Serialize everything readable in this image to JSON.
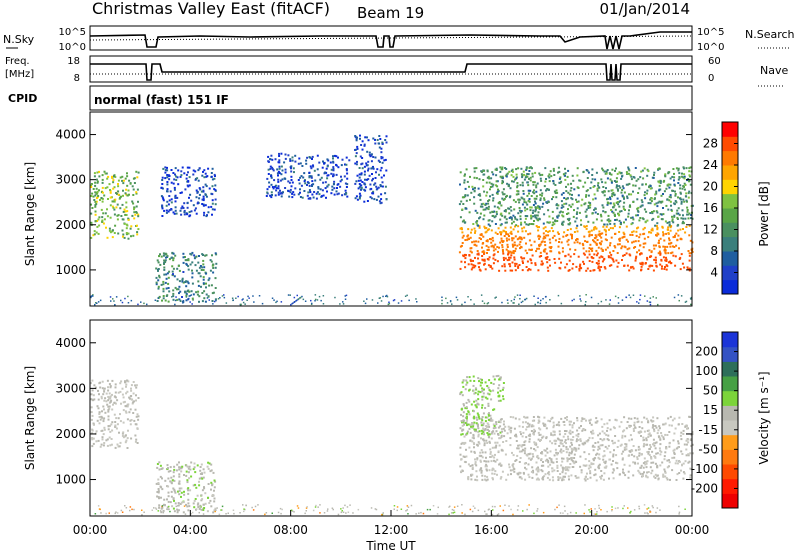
{
  "header": {
    "station": "Christmas Valley East (fitACF)",
    "beam": "Beam 19",
    "date": "01/Jan/2014"
  },
  "noise_panel": {
    "left_label": "N.Sky",
    "left_ticks": [
      "10^5",
      "10^0"
    ],
    "right_ticks": [
      "10^5",
      "10^0"
    ],
    "right_label": "N.Search"
  },
  "freq_panel": {
    "left_label_1": "Freq.",
    "left_label_2": "[MHz]",
    "left_ticks": [
      "18",
      "8"
    ],
    "right_ticks": [
      "60",
      "0"
    ],
    "right_label": "Nave"
  },
  "cpid": {
    "label": "CPID",
    "mode": "normal (fast) 151 IF"
  },
  "colors": {
    "power": [
      "#0a2bd9",
      "#2040c8",
      "#1f5ea0",
      "#3a7f7c",
      "#4a9060",
      "#59a547",
      "#7fc241",
      "#ffd400",
      "#ffa500",
      "#ff7a00",
      "#ff4b00",
      "#ff0000"
    ],
    "velocity": [
      "#1b34d8",
      "#3452c4",
      "#2d6f5a",
      "#46a044",
      "#7cd43a",
      "#b8b8b0",
      "#c8c8c0",
      "#ff9c1a",
      "#ff7a10",
      "#ff4a00",
      "#ff1a00",
      "#ee0000"
    ]
  },
  "chart_data": [
    {
      "type": "heatmap",
      "panel": "power",
      "ylabel": "Slant Range [km]",
      "yticks": [
        "1000",
        "2000",
        "3000",
        "4000"
      ],
      "ylim": [
        200,
        4500
      ],
      "xlim_hours": [
        0,
        24
      ],
      "colorbar": {
        "label": "Power [dB]",
        "ticks": [
          "4",
          "8",
          "12",
          "16",
          "20",
          "24",
          "28"
        ],
        "range": [
          0,
          32
        ]
      },
      "features": [
        {
          "t": [
            0.0,
            1.9
          ],
          "range_km": [
            1700,
            3200
          ],
          "value": 16
        },
        {
          "t": [
            2.8,
            5.0
          ],
          "range_km": [
            2200,
            3300
          ],
          "value": 4
        },
        {
          "t": [
            2.6,
            5.0
          ],
          "range_km": [
            300,
            1400
          ],
          "value": 10
        },
        {
          "t": [
            7.0,
            10.3
          ],
          "range_km": [
            2600,
            3600
          ],
          "value": 4
        },
        {
          "t": [
            10.5,
            11.8
          ],
          "range_km": [
            2500,
            4000
          ],
          "value": 4
        },
        {
          "t": [
            14.7,
            24.0
          ],
          "range_km": [
            1000,
            2000
          ],
          "value": 26
        },
        {
          "t": [
            14.7,
            24.0
          ],
          "range_km": [
            2000,
            3300
          ],
          "value": 12
        }
      ]
    },
    {
      "type": "heatmap",
      "panel": "velocity",
      "ylabel": "Slant Range [km]",
      "yticks": [
        "1000",
        "2000",
        "3000",
        "4000"
      ],
      "ylim": [
        200,
        4500
      ],
      "xlim_hours": [
        0,
        24
      ],
      "xticks": [
        "00:00",
        "04:00",
        "08:00",
        "12:00",
        "16:00",
        "20:00",
        "00:00"
      ],
      "xlabel": "Time UT",
      "colorbar": {
        "label": "Velocity [m s⁻¹]",
        "ticks": [
          "200",
          "100",
          "50",
          "15",
          "-15",
          "-50",
          "-100",
          "-200"
        ],
        "range": [
          -250,
          250
        ]
      },
      "features": [
        {
          "t": [
            0.0,
            1.9
          ],
          "range_km": [
            1700,
            3200
          ],
          "value": 0
        },
        {
          "t": [
            2.6,
            5.0
          ],
          "range_km": [
            300,
            1400
          ],
          "value": 20
        },
        {
          "t": [
            14.7,
            24.0
          ],
          "range_km": [
            1000,
            2400
          ],
          "value": 0
        },
        {
          "t": [
            14.7,
            16.5
          ],
          "range_km": [
            2000,
            3300
          ],
          "value": 40
        }
      ]
    }
  ]
}
